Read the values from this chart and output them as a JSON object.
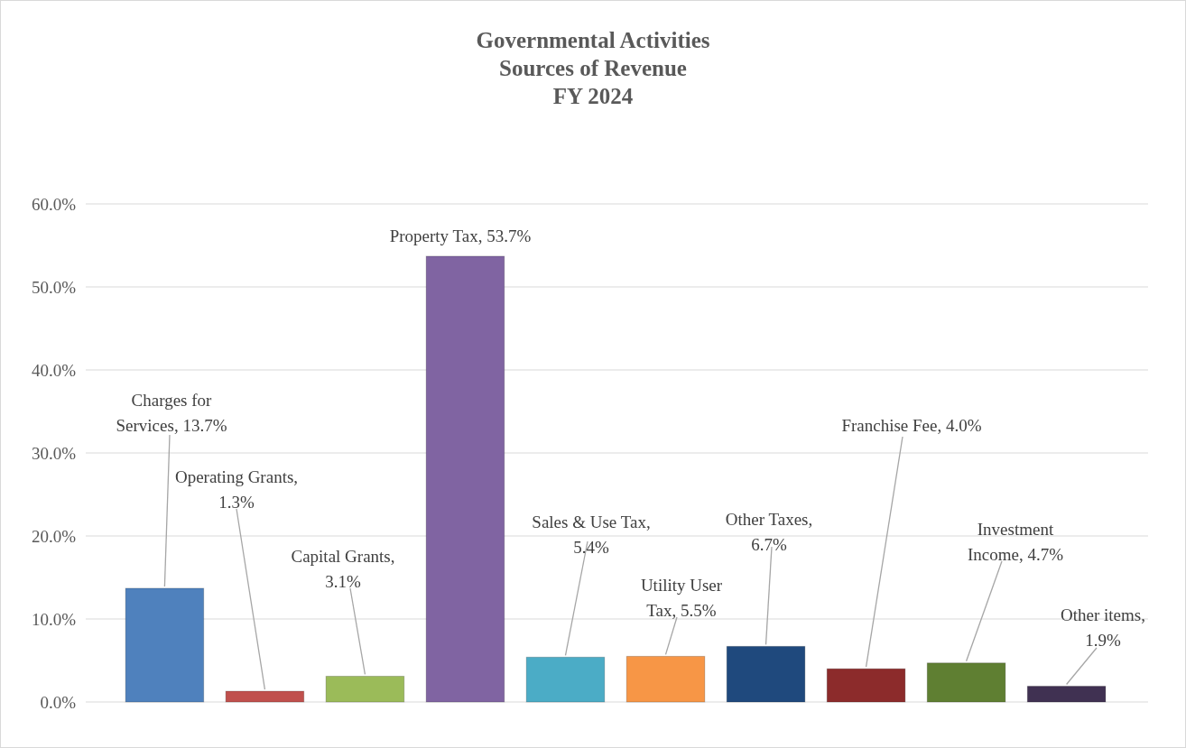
{
  "chart_data": {
    "type": "bar",
    "title": "Governmental Activities\nSources of Revenue\nFY 2024",
    "categories": [
      null,
      null,
      null,
      null,
      null,
      null,
      null,
      null,
      null,
      null
    ],
    "values": [
      13.7,
      1.3,
      3.1,
      53.7,
      5.4,
      5.5,
      6.7,
      4.0,
      4.7,
      1.9
    ],
    "colors": [
      "#4f81bd",
      "#c0504d",
      "#9bbb59",
      "#8064a2",
      "#4bacc6",
      "#f79646",
      "#1f497d",
      "#8c2b2b",
      "#5f7f32",
      "#403152"
    ],
    "value_labels": [
      "Charges for Services, 13.7%",
      "Operating Grants, 1.3%",
      "Capital Grants, 3.1%",
      "Property Tax, 53.7%",
      "Sales & Use Tax, 5.4%",
      "Utility User Tax, 5.5%",
      "Other Taxes, 6.7%",
      "Franchise Fee, 4.0%",
      "Investment Income, 4.7%",
      "Other items, 1.9%"
    ],
    "ylim": [
      0,
      60
    ],
    "yticks": [
      {
        "value": 0,
        "label": "0.0%"
      },
      {
        "value": 10,
        "label": "10.0%"
      },
      {
        "value": 20,
        "label": "20.0%"
      },
      {
        "value": 30,
        "label": "30.0%"
      },
      {
        "value": 40,
        "label": "40.0%"
      },
      {
        "value": 50,
        "label": "50.0%"
      },
      {
        "value": 60,
        "label": "60.0%"
      }
    ],
    "grid": true
  }
}
